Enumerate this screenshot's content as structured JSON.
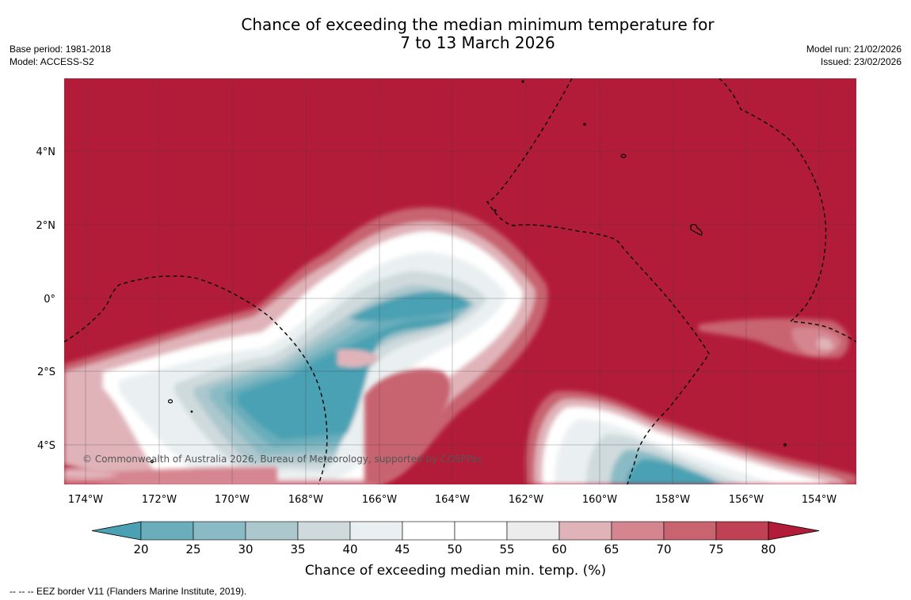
{
  "header": {
    "title_line1": "Chance of exceeding the median minimum temperature for",
    "title_line2": "7 to 13 March 2026",
    "base_period": "Base period: 1981-2018",
    "model": "Model: ACCESS-S2",
    "model_run": "Model run: 21/02/2026",
    "issued": "Issued: 23/02/2026"
  },
  "map": {
    "background_color": "#b31c39",
    "latitude_labels": [
      "4°N",
      "2°N",
      "0°",
      "2°S",
      "4°S"
    ],
    "longitude_labels": [
      "174°W",
      "172°W",
      "170°W",
      "168°W",
      "166°W",
      "164°W",
      "162°W",
      "160°W",
      "158°W",
      "156°W",
      "154°W"
    ],
    "copyright": "© Commonwealth of Australia 2026, Bureau of Meteorology, supported by COSPPac",
    "legend_line": "--  --  -- EEZ border V11 (Flanders Marine Institute, 2019)."
  },
  "colorbar": {
    "title": "Chance of exceeding median min. temp. (%)",
    "tick_labels": [
      "20",
      "25",
      "30",
      "35",
      "40",
      "45",
      "50",
      "55",
      "60",
      "65",
      "70",
      "75",
      "80"
    ],
    "colors": [
      "#4aa1b3",
      "#6aaebc",
      "#8abbc5",
      "#acc7cd",
      "#cfdadd",
      "#eaf0f1",
      "#ffffff",
      "#ffffff",
      "#ececec",
      "#e0b3b9",
      "#d5858f",
      "#c86470",
      "#bf4153",
      "#b31c39"
    ]
  }
}
